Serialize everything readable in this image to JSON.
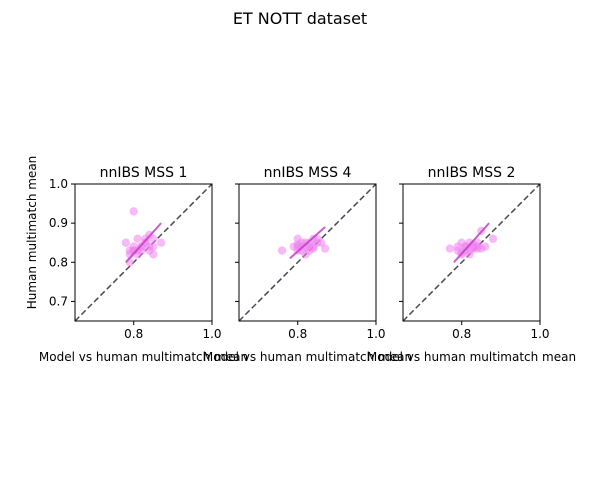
{
  "figure": {
    "title": "ET NOTT dataset"
  },
  "chart_data": [
    {
      "type": "scatter",
      "title": "nnIBS MSS 1",
      "xlabel": "Model vs human multimatch mean",
      "ylabel": "Human multimatch mean",
      "xlim": [
        0.65,
        1.0
      ],
      "ylim": [
        0.65,
        1.0
      ],
      "xticks": [
        "0.8",
        "1.0"
      ],
      "yticks": [
        "0.7",
        "0.8",
        "0.9",
        "1.0"
      ],
      "point_color": "#ee82ee",
      "fit_color": "#bf40bf",
      "diagonal_color": "#4a4a55",
      "x": [
        0.78,
        0.79,
        0.79,
        0.8,
        0.8,
        0.81,
        0.81,
        0.81,
        0.82,
        0.82,
        0.83,
        0.83,
        0.84,
        0.84,
        0.85,
        0.85,
        0.87,
        0.8,
        0.79,
        0.82,
        0.83,
        0.84,
        0.85,
        0.8
      ],
      "y": [
        0.85,
        0.83,
        0.8,
        0.83,
        0.84,
        0.86,
        0.82,
        0.83,
        0.84,
        0.83,
        0.86,
        0.85,
        0.87,
        0.83,
        0.82,
        0.86,
        0.85,
        0.93,
        0.82,
        0.84,
        0.85,
        0.84,
        0.84,
        0.83
      ],
      "fit_x": [
        0.78,
        0.87
      ],
      "fit_y": [
        0.8,
        0.9
      ]
    },
    {
      "type": "scatter",
      "title": "nnIBS MSS 4",
      "xlabel": "Model vs human multimatch mean",
      "ylabel": "",
      "xlim": [
        0.65,
        1.0
      ],
      "ylim": [
        0.65,
        1.0
      ],
      "xticks": [
        "0.8",
        "1.0"
      ],
      "yticks": [],
      "point_color": "#ee82ee",
      "fit_color": "#bf40bf",
      "diagonal_color": "#4a4a55",
      "x": [
        0.76,
        0.79,
        0.8,
        0.8,
        0.81,
        0.81,
        0.82,
        0.82,
        0.83,
        0.83,
        0.84,
        0.84,
        0.85,
        0.85,
        0.86,
        0.87,
        0.8,
        0.81,
        0.82,
        0.83,
        0.84,
        0.8
      ],
      "y": [
        0.83,
        0.84,
        0.84,
        0.86,
        0.85,
        0.83,
        0.84,
        0.82,
        0.85,
        0.83,
        0.86,
        0.84,
        0.85,
        0.86,
        0.85,
        0.835,
        0.83,
        0.84,
        0.85,
        0.84,
        0.835,
        0.845
      ],
      "fit_x": [
        0.78,
        0.87
      ],
      "fit_y": [
        0.81,
        0.89
      ]
    },
    {
      "type": "scatter",
      "title": "nnIBS MSS 2",
      "xlabel": "Model vs human multimatch mean",
      "ylabel": "",
      "xlim": [
        0.65,
        1.0
      ],
      "ylim": [
        0.65,
        1.0
      ],
      "xticks": [
        "0.8",
        "1.0"
      ],
      "yticks": [],
      "point_color": "#ee82ee",
      "fit_color": "#bf40bf",
      "diagonal_color": "#4a4a55",
      "x": [
        0.77,
        0.79,
        0.8,
        0.8,
        0.81,
        0.81,
        0.82,
        0.82,
        0.83,
        0.83,
        0.84,
        0.84,
        0.85,
        0.85,
        0.86,
        0.88,
        0.79,
        0.8,
        0.82,
        0.83,
        0.84,
        0.81
      ],
      "y": [
        0.835,
        0.83,
        0.85,
        0.82,
        0.84,
        0.83,
        0.85,
        0.82,
        0.84,
        0.835,
        0.84,
        0.85,
        0.88,
        0.835,
        0.84,
        0.86,
        0.84,
        0.825,
        0.83,
        0.845,
        0.835,
        0.84
      ],
      "fit_x": [
        0.78,
        0.87
      ],
      "fit_y": [
        0.8,
        0.9
      ]
    }
  ]
}
